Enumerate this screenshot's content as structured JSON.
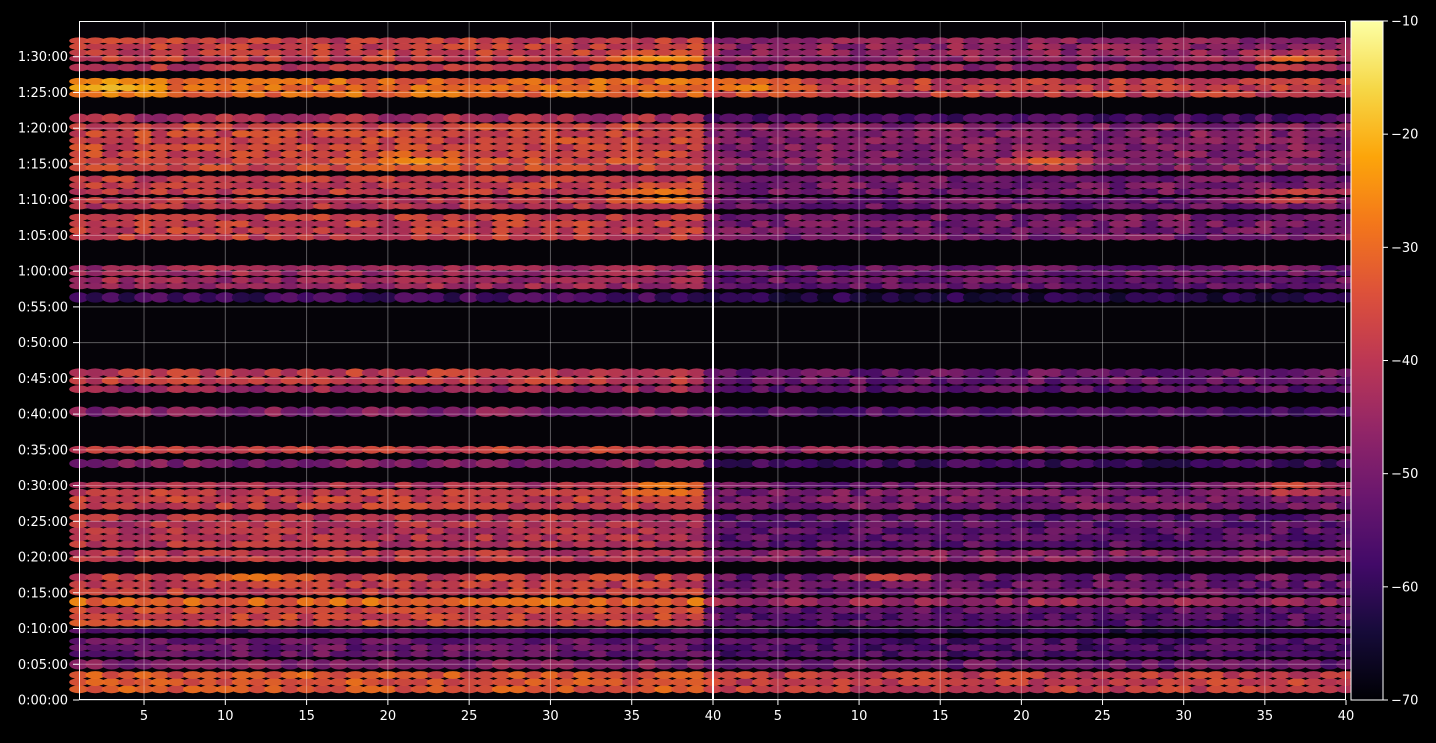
{
  "chart_data": {
    "type": "heatmap",
    "title": "",
    "xlabel": "",
    "ylabel": "",
    "background": "#000000",
    "grid": true,
    "colormap": "inferno",
    "panels": [
      {
        "name": "",
        "xlim": [
          1,
          40
        ],
        "xticks": [
          5,
          10,
          15,
          20,
          25,
          30,
          35,
          40
        ]
      },
      {
        "name": "",
        "xlim": [
          1,
          40
        ],
        "xticks": [
          5,
          10,
          15,
          20,
          25,
          30,
          35,
          40
        ]
      }
    ],
    "ylim_seconds": [
      0,
      5700
    ],
    "yticks": [
      {
        "seconds": 0,
        "label": "0:00:00"
      },
      {
        "seconds": 300,
        "label": "0:05:00"
      },
      {
        "seconds": 600,
        "label": "0:10:00"
      },
      {
        "seconds": 900,
        "label": "0:15:00"
      },
      {
        "seconds": 1200,
        "label": "0:20:00"
      },
      {
        "seconds": 1500,
        "label": "0:25:00"
      },
      {
        "seconds": 1800,
        "label": "0:30:00"
      },
      {
        "seconds": 2100,
        "label": "0:35:00"
      },
      {
        "seconds": 2400,
        "label": "0:40:00"
      },
      {
        "seconds": 2700,
        "label": "0:45:00"
      },
      {
        "seconds": 3000,
        "label": "0:50:00"
      },
      {
        "seconds": 3300,
        "label": "0:55:00"
      },
      {
        "seconds": 3600,
        "label": "1:00:00"
      },
      {
        "seconds": 3900,
        "label": "1:05:00"
      },
      {
        "seconds": 4200,
        "label": "1:10:00"
      },
      {
        "seconds": 4500,
        "label": "1:15:00"
      },
      {
        "seconds": 4800,
        "label": "1:20:00"
      },
      {
        "seconds": 5100,
        "label": "1:25:00"
      },
      {
        "seconds": 5400,
        "label": "1:30:00"
      }
    ],
    "colorbar": {
      "vmin": -70,
      "vmax": -10,
      "ticks": [
        -10,
        -20,
        -30,
        -40,
        -50,
        -60,
        -70
      ],
      "tick_labels": [
        "−10",
        "−20",
        "−30",
        "−40",
        "−50",
        "−60",
        "−70"
      ]
    },
    "bands": [
      {
        "t0": 60,
        "t1": 240,
        "left": -33,
        "right": -38
      },
      {
        "t0": 260,
        "t1": 340,
        "left": -48,
        "right": -52
      },
      {
        "t0": 360,
        "t1": 520,
        "left": -52,
        "right": -56
      },
      {
        "t0": 560,
        "t1": 600,
        "left": -56,
        "right": -60
      },
      {
        "t0": 620,
        "t1": 780,
        "left": -36,
        "right": -54
      },
      {
        "t0": 790,
        "t1": 860,
        "left": -30,
        "right": -44
      },
      {
        "t0": 880,
        "t1": 1060,
        "left": -38,
        "right": -52
      },
      {
        "t0": 1160,
        "t1": 1260,
        "left": -40,
        "right": -48
      },
      {
        "t0": 1280,
        "t1": 1560,
        "left": -40,
        "right": -54
      },
      {
        "t0": 1600,
        "t1": 1770,
        "left": -38,
        "right": -50
      },
      {
        "t0": 1780,
        "t1": 1830,
        "left": -42,
        "right": -52
      },
      {
        "t0": 1950,
        "t1": 2020,
        "left": -48,
        "right": -58
      },
      {
        "t0": 2070,
        "t1": 2130,
        "left": -38,
        "right": -46
      },
      {
        "t0": 2380,
        "t1": 2460,
        "left": -48,
        "right": -56
      },
      {
        "t0": 2580,
        "t1": 2640,
        "left": -44,
        "right": -54
      },
      {
        "t0": 2650,
        "t1": 2780,
        "left": -38,
        "right": -52
      },
      {
        "t0": 3340,
        "t1": 3420,
        "left": -58,
        "right": -62
      },
      {
        "t0": 3450,
        "t1": 3550,
        "left": -44,
        "right": -52
      },
      {
        "t0": 3560,
        "t1": 3650,
        "left": -44,
        "right": -52
      },
      {
        "t0": 3860,
        "t1": 4080,
        "left": -38,
        "right": -50
      },
      {
        "t0": 4120,
        "t1": 4220,
        "left": -40,
        "right": -52
      },
      {
        "t0": 4240,
        "t1": 4400,
        "left": -38,
        "right": -50
      },
      {
        "t0": 4440,
        "t1": 4840,
        "left": -36,
        "right": -48
      },
      {
        "t0": 4850,
        "t1": 4920,
        "left": -42,
        "right": -56
      },
      {
        "t0": 5060,
        "t1": 5220,
        "left": -30,
        "right": -38
      },
      {
        "t0": 5280,
        "t1": 5340,
        "left": -40,
        "right": -46
      },
      {
        "t0": 5360,
        "t1": 5560,
        "left": -38,
        "right": -46
      }
    ],
    "hotspots": [
      {
        "t": 1050,
        "x": 12,
        "value": -26
      },
      {
        "t": 1780,
        "x": 37,
        "value": -24
      },
      {
        "t": 4230,
        "x": 37,
        "value": -22
      },
      {
        "t": 4520,
        "x": 22,
        "value": -24
      },
      {
        "t": 5150,
        "x": 3,
        "value": -18
      },
      {
        "t": 5370,
        "x": 37,
        "value": -22
      },
      {
        "t": 3700,
        "x": 34,
        "value": -24
      }
    ]
  }
}
